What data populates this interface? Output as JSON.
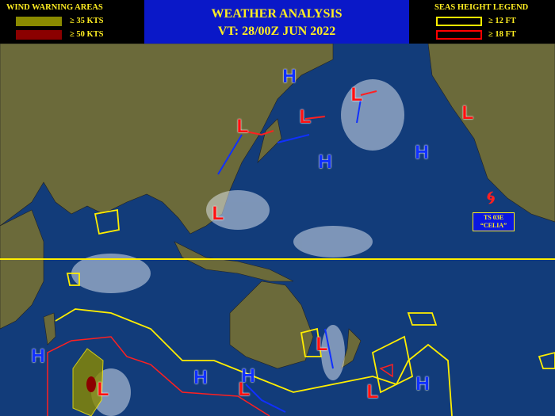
{
  "wind_legend": {
    "title": "WIND WARNING AREAS",
    "items": [
      {
        "label": "≥ 35 KTS",
        "color": "#8a8a00"
      },
      {
        "label": "≥ 50 KTS",
        "color": "#8b0000"
      }
    ]
  },
  "header": {
    "title": "WEATHER ANALYSIS",
    "valid_time": "VT: 28/00Z JUN 2022"
  },
  "seas_legend": {
    "title": "SEAS HEIGHT  LEGEND",
    "items": [
      {
        "label": "≥ 12 FT",
        "color": "#ffee00"
      },
      {
        "label": "≥ 18 FT",
        "color": "#ff0000"
      }
    ]
  },
  "storm": {
    "icon": "tropical-storm-icon",
    "id": "TS 03E",
    "name": "“CELIA”"
  },
  "pressure_centers": {
    "high": "H",
    "low": "L"
  },
  "colors": {
    "ocean": "#123c7a",
    "land": "#6b6a3a",
    "high": "#1030ff",
    "low": "#ff1010",
    "equator": "#ffee00"
  }
}
